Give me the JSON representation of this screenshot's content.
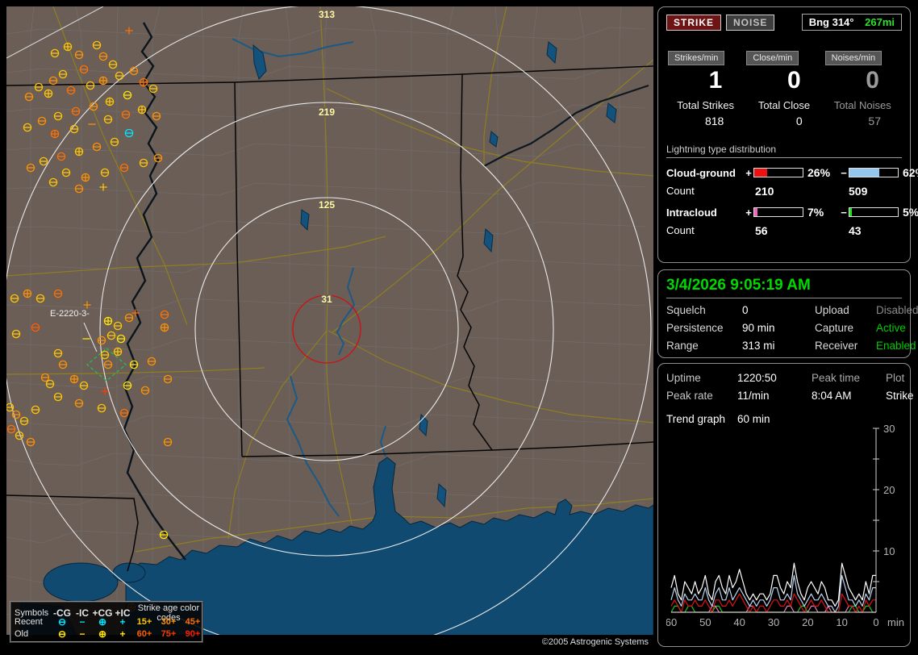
{
  "colors": {
    "recent": "#00e4ff",
    "old": "#ffe400",
    "green_status": "#00cc00",
    "ring_label": "#fff9a0",
    "alarm_ring": "#d01010"
  },
  "panel_stats": {
    "strike_btn": "STRIKE",
    "noise_btn": "NOISE",
    "bearing_label": "Bng 314°",
    "bearing_range": "267mi",
    "columns": [
      {
        "chip": "Strikes/min",
        "rate": "1",
        "total_label": "Total Strikes",
        "total": "818"
      },
      {
        "chip": "Close/min",
        "rate": "0",
        "total_label": "Total Close",
        "total": "0"
      },
      {
        "chip": "Noises/min",
        "rate": "0",
        "total_label": "Total Noises",
        "total": "57"
      }
    ],
    "distribution": {
      "title": "Lightning type distribution",
      "rows": [
        {
          "label": "Cloud-ground",
          "pos_sign": "+",
          "pos_pct": 26,
          "pos_pct_label": "26%",
          "pos_color": "#ee1111",
          "neg_sign": "−",
          "neg_pct": 62,
          "neg_pct_label": "62%",
          "neg_color": "#93c7f0",
          "count_label": "Count",
          "pos_count": "210",
          "neg_count": "509"
        },
        {
          "label": "Intracloud",
          "pos_sign": "+",
          "pos_pct": 7,
          "pos_pct_label": "7%",
          "pos_color": "#ee66bb",
          "neg_sign": "−",
          "neg_pct": 5,
          "neg_pct_label": "5%",
          "neg_color": "#22dd22",
          "count_label": "Count",
          "pos_count": "56",
          "neg_count": "43"
        }
      ]
    }
  },
  "panel_status": {
    "datetime": "3/4/2026 9:05:19 AM",
    "rows": [
      {
        "l1": "Squelch",
        "v1": "0",
        "l2": "Upload",
        "v2": "Disabled"
      },
      {
        "l1": "Persistence",
        "v1": "90 min",
        "l2": "Capture",
        "v2": "Active"
      },
      {
        "l1": "Range",
        "v1": "313 mi",
        "l2": "Receiver",
        "v2": "Enabled"
      }
    ]
  },
  "panel_trend": {
    "r1": [
      "Uptime",
      "1220:50",
      "Peak time",
      "Plot"
    ],
    "r2": [
      "Peak rate",
      "11/min",
      "8:04 AM",
      "Strike"
    ],
    "trend_label": "Trend graph",
    "trend_window": "60 min",
    "y_ticks": [
      10,
      20,
      30
    ],
    "x_ticks": [
      60,
      50,
      40,
      30,
      20,
      10,
      0
    ],
    "x_unit": "min"
  },
  "trend_graph": {
    "type": "line",
    "x_axis": "minutes ago (60 to 0)",
    "y_range": [
      0,
      30
    ],
    "series": [
      {
        "name": "IC-",
        "color": "#18c818",
        "values": [
          0,
          1,
          1,
          0,
          0,
          1,
          1,
          0,
          0,
          0,
          0,
          0,
          0,
          1,
          1,
          0,
          0,
          0,
          0,
          0,
          0,
          0,
          0,
          0,
          0,
          0,
          0,
          0,
          0,
          0,
          0,
          0,
          0,
          0,
          0,
          0,
          0,
          0,
          1,
          1,
          0,
          0,
          0,
          0,
          0,
          0,
          0,
          0,
          0,
          0,
          0,
          0,
          0,
          1,
          1,
          0,
          0,
          1,
          1,
          0,
          0
        ]
      },
      {
        "name": "IC+",
        "color": "#e87ab8",
        "values": [
          0,
          0,
          0,
          0,
          0,
          0,
          0,
          0,
          0,
          0,
          0,
          0,
          1,
          1,
          0,
          0,
          0,
          0,
          0,
          0,
          0,
          0,
          0,
          1,
          1,
          0,
          0,
          0,
          0,
          0,
          0,
          0,
          0,
          0,
          1,
          1,
          0,
          0,
          0,
          0,
          0,
          1,
          1,
          0,
          0,
          0,
          1,
          0,
          0,
          0,
          0,
          0,
          1,
          1,
          0,
          0,
          0,
          0,
          0,
          0,
          0
        ]
      },
      {
        "name": "CG+",
        "color": "#d81414",
        "values": [
          1,
          2,
          1,
          0,
          2,
          1,
          1,
          2,
          1,
          1,
          2,
          1,
          0,
          2,
          2,
          1,
          1,
          2,
          1,
          2,
          3,
          2,
          1,
          0,
          1,
          0,
          1,
          1,
          0,
          1,
          2,
          2,
          1,
          1,
          2,
          1,
          3,
          2,
          1,
          0,
          1,
          2,
          1,
          1,
          2,
          1,
          0,
          0,
          0,
          0,
          3,
          2,
          1,
          1,
          0,
          1,
          0,
          2,
          1,
          2,
          2
        ]
      },
      {
        "name": "CG-",
        "color": "#b8d2ee",
        "values": [
          2,
          4,
          2,
          1,
          3,
          2,
          2,
          3,
          2,
          2,
          4,
          2,
          1,
          3,
          4,
          2,
          2,
          4,
          2,
          3,
          4,
          3,
          2,
          1,
          2,
          1,
          2,
          2,
          1,
          2,
          4,
          4,
          2,
          2,
          3,
          2,
          6,
          3,
          2,
          1,
          2,
          3,
          2,
          2,
          3,
          2,
          1,
          1,
          0,
          1,
          6,
          4,
          2,
          2,
          1,
          2,
          1,
          3,
          2,
          4,
          4
        ]
      },
      {
        "name": "Total",
        "color": "#ffffff",
        "values": [
          4,
          6,
          3,
          2,
          5,
          4,
          3,
          5,
          3,
          4,
          6,
          3,
          2,
          5,
          6,
          4,
          3,
          6,
          4,
          5,
          7,
          5,
          3,
          2,
          3,
          2,
          3,
          3,
          2,
          3,
          6,
          6,
          4,
          3,
          5,
          4,
          8,
          5,
          3,
          2,
          4,
          5,
          4,
          3,
          5,
          4,
          2,
          2,
          1,
          2,
          8,
          6,
          4,
          3,
          2,
          3,
          2,
          5,
          3,
          6,
          6
        ]
      }
    ]
  },
  "map": {
    "copyright": "©2005 Astrogenic Systems",
    "rings": [
      {
        "label": "313"
      },
      {
        "label": "219"
      },
      {
        "label": "125"
      },
      {
        "label": "31"
      }
    ],
    "storm_cell_label": "E-2220-3-",
    "legend": {
      "header": [
        "Symbols",
        "-CG",
        "-IC",
        "+CG",
        "+IC"
      ],
      "age_title": "Strike age color codes",
      "rows": [
        {
          "name": "Recent",
          "color": "#00e4ff",
          "ages": [
            {
              "t": "15+",
              "c": "#ffc400"
            },
            {
              "t": "30+",
              "c": "#ff9000"
            },
            {
              "t": "45+",
              "c": "#ff7000"
            }
          ]
        },
        {
          "name": "Old",
          "color": "#ffe400",
          "ages": [
            {
              "t": "60+",
              "c": "#ff5c00"
            },
            {
              "t": "75+",
              "c": "#ff3a00"
            },
            {
              "t": "90+",
              "c": "#ff1e00"
            }
          ]
        }
      ]
    },
    "strikes": [
      [
        60,
        58,
        0,
        "#ffc400"
      ],
      [
        76,
        50,
        1,
        "#ffc400"
      ],
      [
        90,
        60,
        0,
        "#ff9000"
      ],
      [
        112,
        48,
        0,
        "#ffc400"
      ],
      [
        120,
        62,
        0,
        "#ff9000"
      ],
      [
        152,
        30,
        3,
        "#ff7000"
      ],
      [
        132,
        72,
        0,
        "#ffc400"
      ],
      [
        96,
        78,
        0,
        "#ff7000"
      ],
      [
        70,
        84,
        0,
        "#ffc400"
      ],
      [
        58,
        92,
        0,
        "#ff9000"
      ],
      [
        40,
        100,
        0,
        "#ffc400"
      ],
      [
        28,
        112,
        0,
        "#ff9000"
      ],
      [
        52,
        108,
        1,
        "#ffc400"
      ],
      [
        80,
        104,
        0,
        "#ff7000"
      ],
      [
        104,
        98,
        0,
        "#ffc400"
      ],
      [
        120,
        92,
        1,
        "#ff9000"
      ],
      [
        140,
        86,
        0,
        "#ffc400"
      ],
      [
        158,
        80,
        0,
        "#ff9000"
      ],
      [
        170,
        94,
        1,
        "#ff7000"
      ],
      [
        182,
        102,
        0,
        "#ffc400"
      ],
      [
        150,
        110,
        0,
        "#ffe400"
      ],
      [
        128,
        118,
        1,
        "#ffc400"
      ],
      [
        108,
        124,
        0,
        "#ff9000"
      ],
      [
        86,
        130,
        0,
        "#ff7000"
      ],
      [
        64,
        136,
        0,
        "#ffc400"
      ],
      [
        44,
        142,
        0,
        "#ff9000"
      ],
      [
        26,
        150,
        0,
        "#ffc400"
      ],
      [
        60,
        158,
        1,
        "#ff7000"
      ],
      [
        84,
        152,
        0,
        "#ffc400"
      ],
      [
        106,
        146,
        2,
        "#ff9000"
      ],
      [
        126,
        140,
        0,
        "#ffc400"
      ],
      [
        148,
        134,
        0,
        "#ff7000"
      ],
      [
        168,
        128,
        1,
        "#ffc400"
      ],
      [
        186,
        136,
        0,
        "#ff9000"
      ],
      [
        152,
        157,
        0,
        "#00e4ff"
      ],
      [
        134,
        168,
        0,
        "#ffc400"
      ],
      [
        112,
        174,
        0,
        "#ff9000"
      ],
      [
        90,
        180,
        1,
        "#ffc400"
      ],
      [
        68,
        186,
        0,
        "#ff7000"
      ],
      [
        46,
        192,
        0,
        "#ffc400"
      ],
      [
        30,
        200,
        0,
        "#ff9000"
      ],
      [
        74,
        206,
        0,
        "#ffc400"
      ],
      [
        98,
        212,
        1,
        "#ff9000"
      ],
      [
        122,
        206,
        0,
        "#ffc400"
      ],
      [
        146,
        200,
        0,
        "#ff7000"
      ],
      [
        170,
        194,
        0,
        "#ffc400"
      ],
      [
        188,
        188,
        0,
        "#ff9000"
      ],
      [
        58,
        218,
        0,
        "#ffc400"
      ],
      [
        90,
        226,
        0,
        "#ff9000"
      ],
      [
        120,
        224,
        3,
        "#ffc400"
      ],
      [
        10,
        362,
        0,
        "#ffc400"
      ],
      [
        26,
        356,
        1,
        "#ff9000"
      ],
      [
        42,
        362,
        0,
        "#ffc400"
      ],
      [
        64,
        356,
        0,
        "#ff7000"
      ],
      [
        100,
        370,
        3,
        "#ff9000"
      ],
      [
        126,
        390,
        1,
        "#ffe400"
      ],
      [
        138,
        396,
        0,
        "#ffc400"
      ],
      [
        152,
        386,
        0,
        "#ff9000"
      ],
      [
        196,
        382,
        0,
        "#ff7000"
      ],
      [
        36,
        398,
        0,
        "#ff5c00"
      ],
      [
        12,
        406,
        0,
        "#ffc400"
      ],
      [
        99,
        412,
        2,
        "#ffe400"
      ],
      [
        118,
        414,
        0,
        "#ff9000"
      ],
      [
        130,
        408,
        0,
        "#ffc400"
      ],
      [
        142,
        412,
        0,
        "#ffe400"
      ],
      [
        196,
        398,
        1,
        "#ff9000"
      ],
      [
        160,
        380,
        3,
        "#ff7000"
      ],
      [
        64,
        430,
        0,
        "#ffc400"
      ],
      [
        70,
        444,
        0,
        "#ff9000"
      ],
      [
        122,
        432,
        0,
        "#ffc400"
      ],
      [
        138,
        428,
        1,
        "#ffc400"
      ],
      [
        126,
        444,
        0,
        "#ff9000"
      ],
      [
        158,
        444,
        0,
        "#ffe400"
      ],
      [
        180,
        440,
        0,
        "#ff9000"
      ],
      [
        200,
        462,
        0,
        "#ff9000"
      ],
      [
        48,
        460,
        0,
        "#ff9000"
      ],
      [
        54,
        468,
        0,
        "#ffc400"
      ],
      [
        84,
        462,
        1,
        "#ff9000"
      ],
      [
        96,
        470,
        0,
        "#ffc400"
      ],
      [
        122,
        477,
        3,
        "#ff3a00"
      ],
      [
        150,
        470,
        0,
        "#ffe400"
      ],
      [
        172,
        476,
        0,
        "#ff9000"
      ],
      [
        64,
        484,
        0,
        "#ffc400"
      ],
      [
        90,
        492,
        0,
        "#ff9000"
      ],
      [
        118,
        498,
        0,
        "#ffc400"
      ],
      [
        146,
        504,
        0,
        "#ff7000"
      ],
      [
        36,
        500,
        0,
        "#ffc400"
      ],
      [
        4,
        497,
        0,
        "#ffc400"
      ],
      [
        12,
        506,
        0,
        "#ff9000"
      ],
      [
        22,
        514,
        0,
        "#ffc400"
      ],
      [
        6,
        524,
        0,
        "#ff7000"
      ],
      [
        16,
        532,
        0,
        "#ffc400"
      ],
      [
        30,
        540,
        0,
        "#ff9000"
      ],
      [
        200,
        540,
        0,
        "#ff9000"
      ],
      [
        195,
        655,
        0,
        "#ffe400"
      ],
      [
        155,
        745,
        1,
        "#ff7000"
      ]
    ]
  }
}
